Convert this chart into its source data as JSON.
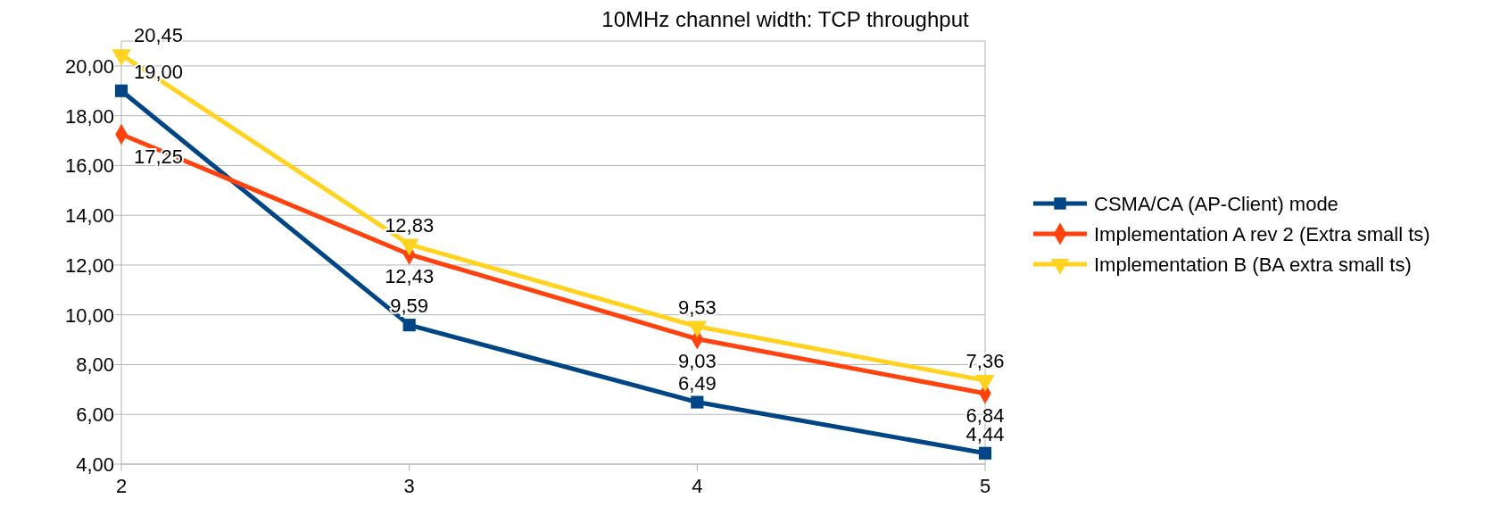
{
  "chart_data": {
    "type": "line",
    "title": "10MHz channel width: TCP throughput",
    "x": [
      2,
      3,
      4,
      5
    ],
    "xlim": [
      2,
      5
    ],
    "xticks": [
      2,
      3,
      4,
      5
    ],
    "ylim": [
      4,
      21
    ],
    "yticks": [
      {
        "value": 4,
        "label": "4,00"
      },
      {
        "value": 6,
        "label": "6,00"
      },
      {
        "value": 8,
        "label": "8,00"
      },
      {
        "value": 10,
        "label": "10,00"
      },
      {
        "value": 12,
        "label": "12,00"
      },
      {
        "value": 14,
        "label": "14,00"
      },
      {
        "value": 16,
        "label": "16,00"
      },
      {
        "value": 18,
        "label": "18,00"
      },
      {
        "value": 20,
        "label": "20,00"
      }
    ],
    "grid": "y",
    "legend": "right",
    "series": [
      {
        "name": "CSMA/CA (AP-Client) mode",
        "color": "#004586",
        "marker": "square",
        "values": [
          19.0,
          9.59,
          6.49,
          4.44
        ],
        "value_labels": [
          "19,00",
          "9,59",
          "6,49",
          "4,44"
        ]
      },
      {
        "name": "Implementation A rev 2 (Extra small ts)",
        "color": "#ff420e",
        "marker": "diamond",
        "values": [
          17.25,
          12.43,
          9.03,
          6.84
        ],
        "value_labels": [
          "17,25",
          "12,43",
          "9,03",
          "6,84"
        ]
      },
      {
        "name": "Implementation B (BA extra small ts)",
        "color": "#ffd320",
        "marker": "triangle",
        "values": [
          20.45,
          12.83,
          9.53,
          7.36
        ],
        "value_labels": [
          "20,45",
          "12,83",
          "9,53",
          "7,36"
        ]
      }
    ]
  }
}
